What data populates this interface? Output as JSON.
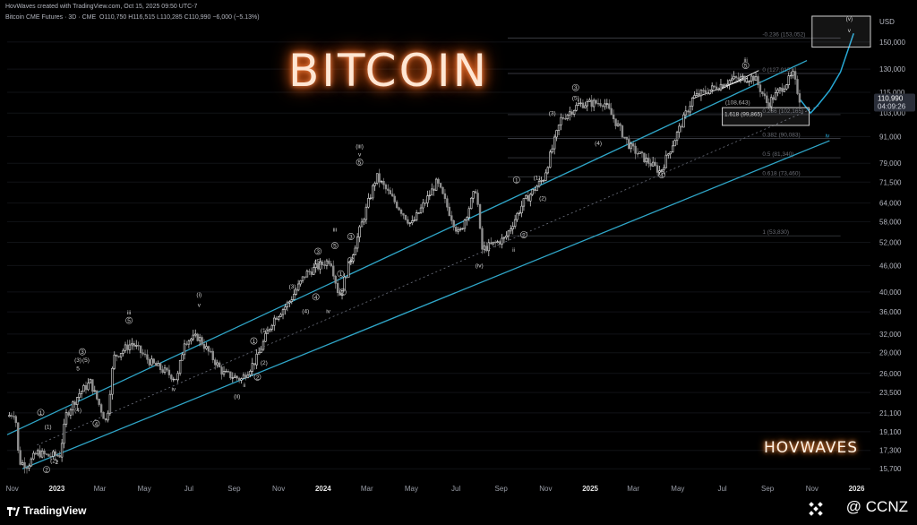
{
  "header": {
    "created_line": "HovWaves created with TradingView.com, Oct 15, 2025 09:50 UTC-7",
    "symbol_line": "Bitcoin CME Futures · 3D · CME",
    "ohlc": "O110,750 H116,515 L110,285 C110,990 −6,000 (−5.13%)",
    "currency": "USD"
  },
  "overlay": {
    "title": "BITCOIN",
    "brand": "HOVWAVES",
    "footer_logo": "TradingView",
    "watermark": "@ CCNZ"
  },
  "price_badges": {
    "last": "110,990",
    "timer": "04:09:26"
  },
  "chart_data": {
    "type": "line",
    "symbol": "Bitcoin CME Futures",
    "y_scale": "log",
    "ylim": [
      14500,
      172000
    ],
    "xlim": [
      "2022-10-25",
      "2026-01-20"
    ],
    "y_ticks": [
      15700,
      17300,
      19100,
      21100,
      23500,
      26000,
      29000,
      32000,
      36000,
      40000,
      46000,
      52000,
      58000,
      64000,
      71500,
      79000,
      91000,
      103000,
      115000,
      130000,
      150000
    ],
    "y_tick_labels": [
      "15,700",
      "17,300",
      "19,100",
      "21,100",
      "23,500",
      "26,000",
      "29,000",
      "32,000",
      "36,000",
      "40,000",
      "46,000",
      "52,000",
      "58,000",
      "64,000",
      "71,500",
      "79,000",
      "91,000",
      "103,000",
      "115,000",
      "130,000",
      "150,000"
    ],
    "x_ticks": [
      {
        "date": "2022-11-01",
        "label": "Nov"
      },
      {
        "date": "2023-01-01",
        "label": "2023"
      },
      {
        "date": "2023-03-01",
        "label": "Mar"
      },
      {
        "date": "2023-05-01",
        "label": "May"
      },
      {
        "date": "2023-07-01",
        "label": "Jul"
      },
      {
        "date": "2023-09-01",
        "label": "Sep"
      },
      {
        "date": "2023-11-01",
        "label": "Nov"
      },
      {
        "date": "2024-01-01",
        "label": "2024"
      },
      {
        "date": "2024-03-01",
        "label": "Mar"
      },
      {
        "date": "2024-05-01",
        "label": "May"
      },
      {
        "date": "2024-07-01",
        "label": "Jul"
      },
      {
        "date": "2024-09-01",
        "label": "Sep"
      },
      {
        "date": "2024-11-01",
        "label": "Nov"
      },
      {
        "date": "2025-01-01",
        "label": "2025"
      },
      {
        "date": "2025-03-01",
        "label": "Mar"
      },
      {
        "date": "2025-05-01",
        "label": "May"
      },
      {
        "date": "2025-07-01",
        "label": "Jul"
      },
      {
        "date": "2025-09-01",
        "label": "Sep"
      },
      {
        "date": "2025-11-01",
        "label": "Nov"
      },
      {
        "date": "2026-01-01",
        "label": "2026"
      }
    ],
    "series": [
      {
        "values": [
          [
            "2022-10-25",
            20700
          ],
          [
            "2022-11-05",
            21200
          ],
          [
            "2022-11-10",
            16300
          ],
          [
            "2022-11-22",
            16000
          ],
          [
            "2022-12-05",
            17100
          ],
          [
            "2022-12-20",
            16800
          ],
          [
            "2023-01-05",
            16900
          ],
          [
            "2023-01-14",
            20900
          ],
          [
            "2023-02-01",
            23400
          ],
          [
            "2023-02-16",
            24800
          ],
          [
            "2023-03-10",
            20000
          ],
          [
            "2023-03-20",
            28300
          ],
          [
            "2023-04-14",
            30500
          ],
          [
            "2023-05-10",
            27500
          ],
          [
            "2023-06-15",
            25200
          ],
          [
            "2023-06-25",
            30900
          ],
          [
            "2023-07-14",
            31500
          ],
          [
            "2023-08-17",
            26000
          ],
          [
            "2023-09-11",
            25200
          ],
          [
            "2023-10-01",
            27900
          ],
          [
            "2023-10-24",
            34500
          ],
          [
            "2023-11-15",
            37800
          ],
          [
            "2023-12-08",
            44000
          ],
          [
            "2024-01-11",
            47500
          ],
          [
            "2024-01-23",
            39000
          ],
          [
            "2024-02-15",
            52000
          ],
          [
            "2024-03-14",
            73700
          ],
          [
            "2024-05-01",
            57000
          ],
          [
            "2024-06-05",
            71500
          ],
          [
            "2024-07-05",
            54000
          ],
          [
            "2024-07-29",
            69500
          ],
          [
            "2024-08-05",
            50000
          ],
          [
            "2024-09-06",
            53000
          ],
          [
            "2024-10-01",
            64000
          ],
          [
            "2024-10-29",
            73000
          ],
          [
            "2024-11-22",
            99800
          ],
          [
            "2024-12-17",
            108000
          ],
          [
            "2025-01-20",
            109000
          ],
          [
            "2025-02-25",
            86000
          ],
          [
            "2025-04-07",
            75500
          ],
          [
            "2025-05-22",
            111900
          ],
          [
            "2025-07-14",
            123000
          ],
          [
            "2025-08-14",
            124500
          ],
          [
            "2025-09-01",
            108000
          ],
          [
            "2025-10-06",
            126000
          ],
          [
            "2025-10-15",
            110990
          ]
        ]
      }
    ],
    "fib_levels": [
      {
        "label": "-0.236 (153,052)",
        "value": 153052
      },
      {
        "label": "0 (127,015)",
        "value": 127015
      },
      {
        "label": "0.236 (102,165)",
        "value": 102165
      },
      {
        "label": "0.382 (90,083)",
        "value": 90083
      },
      {
        "label": "0.5 (81,340)",
        "value": 81340
      },
      {
        "label": "0.618 (73,460)",
        "value": 73460
      },
      {
        "label": "1 (53,830)",
        "value": 53830
      }
    ],
    "inner_level": "1.618 (99,865)",
    "small_level": "(108,643)",
    "wave_labels": [
      {
        "t": "(v)",
        "d": "2025-12-22",
        "y": 168000,
        "w": 1
      },
      {
        "t": "v",
        "d": "2025-12-22",
        "y": 158000,
        "w": 1
      },
      {
        "t": "iii",
        "d": "2025-08-02",
        "y": 135000,
        "w": 1
      },
      {
        "t": "5",
        "d": "2025-08-02",
        "y": 131000,
        "w": 1,
        "c": 1
      },
      {
        "t": "3",
        "d": "2024-12-12",
        "y": 116500,
        "w": 1,
        "c": 1
      },
      {
        "t": "(5)",
        "d": "2024-12-12",
        "y": 110500,
        "w": 1
      },
      {
        "t": "(3)",
        "d": "2024-11-10",
        "y": 102000,
        "w": 1
      },
      {
        "t": "(4)",
        "d": "2025-01-12",
        "y": 87000,
        "w": 1
      },
      {
        "t": "4",
        "d": "2025-04-09",
        "y": 73500,
        "w": 1,
        "c": 1
      },
      {
        "t": "iv",
        "d": "2025-11-22",
        "y": 90500,
        "w": 1
      },
      {
        "t": "(iii)",
        "d": "2024-02-20",
        "y": 85500,
        "w": 1
      },
      {
        "t": "v",
        "d": "2024-02-20",
        "y": 82000,
        "w": 1
      },
      {
        "t": "5",
        "d": "2024-02-20",
        "y": 78500,
        "w": 1,
        "c": 1
      },
      {
        "t": "1",
        "d": "2024-09-22",
        "y": 71500,
        "w": 1,
        "c": 1
      },
      {
        "t": "(1)",
        "d": "2024-10-20",
        "y": 72500,
        "w": 1
      },
      {
        "t": "(2)",
        "d": "2024-10-28",
        "y": 65000,
        "w": 1
      },
      {
        "t": "2",
        "d": "2024-10-02",
        "y": 53500,
        "w": 1,
        "c": 1
      },
      {
        "t": "ii",
        "d": "2024-09-18",
        "y": 49500,
        "w": 1
      },
      {
        "t": "(iv)",
        "d": "2024-08-02",
        "y": 45500,
        "w": 1
      },
      {
        "t": "iii",
        "d": "2024-01-17",
        "y": 55000,
        "w": 1
      },
      {
        "t": "5",
        "d": "2024-01-17",
        "y": 50500,
        "w": 1,
        "c": 1
      },
      {
        "t": "3",
        "d": "2023-12-25",
        "y": 49000,
        "w": 1,
        "c": 1
      },
      {
        "t": "(5)",
        "d": "2023-12-25",
        "y": 46500,
        "w": 1
      },
      {
        "t": "3",
        "d": "2024-02-08",
        "y": 53000,
        "w": 1,
        "c": 1
      },
      {
        "t": "4",
        "d": "2024-02-08",
        "y": 46700,
        "w": 1,
        "c": 1
      },
      {
        "t": "(3)",
        "d": "2023-11-20",
        "y": 40700,
        "w": 1
      },
      {
        "t": "4",
        "d": "2023-12-22",
        "y": 38500,
        "w": 1,
        "c": 1
      },
      {
        "t": "(4)",
        "d": "2023-12-08",
        "y": 35800,
        "w": 1
      },
      {
        "t": "1",
        "d": "2024-01-25",
        "y": 43500,
        "w": 1,
        "c": 1
      },
      {
        "t": "2",
        "d": "2024-01-28",
        "y": 39500,
        "w": 1,
        "c": 1
      },
      {
        "t": "iv",
        "d": "2024-01-08",
        "y": 35800,
        "w": 1
      },
      {
        "t": "(i)",
        "d": "2023-07-15",
        "y": 39000,
        "w": 1
      },
      {
        "t": "v",
        "d": "2023-07-15",
        "y": 37000,
        "w": 1
      },
      {
        "t": "iii",
        "d": "2023-04-10",
        "y": 35500,
        "w": 1
      },
      {
        "t": "5",
        "d": "2023-04-10",
        "y": 34000,
        "w": 1,
        "c": 1
      },
      {
        "t": "1",
        "d": "2023-09-28",
        "y": 30500,
        "w": 1,
        "c": 1
      },
      {
        "t": "(1)",
        "d": "2023-10-12",
        "y": 32300,
        "w": 1
      },
      {
        "t": "(2)",
        "d": "2023-10-12",
        "y": 27200,
        "w": 1
      },
      {
        "t": "2",
        "d": "2023-10-03",
        "y": 25200,
        "w": 1,
        "c": 1
      },
      {
        "t": "ii",
        "d": "2023-09-15",
        "y": 24200,
        "w": 1
      },
      {
        "t": "(ii)",
        "d": "2023-09-05",
        "y": 22800,
        "w": 1
      },
      {
        "t": "iv",
        "d": "2023-06-10",
        "y": 23700,
        "w": 1
      },
      {
        "t": "3",
        "d": "2023-02-05",
        "y": 28800,
        "w": 1,
        "c": 1
      },
      {
        "t": "(3)",
        "d": "2023-01-30",
        "y": 27600,
        "w": 1
      },
      {
        "t": "(5)",
        "d": "2023-02-10",
        "y": 27600,
        "w": 1
      },
      {
        "t": "5",
        "d": "2023-01-30",
        "y": 26400,
        "w": 1
      },
      {
        "t": "(4)",
        "d": "2023-01-30",
        "y": 21200,
        "w": 1
      },
      {
        "t": "1",
        "d": "2022-12-10",
        "y": 20900,
        "w": 1,
        "c": 1
      },
      {
        "t": "(1)",
        "d": "2022-12-20",
        "y": 19400,
        "w": 1
      },
      {
        "t": "(2)",
        "d": "2022-12-28",
        "y": 16200,
        "w": 1
      },
      {
        "t": "2",
        "d": "2022-12-18",
        "y": 15450,
        "w": 1,
        "c": 1
      },
      {
        "t": "2",
        "d": "2023-01-01",
        "y": 16100,
        "w": 1
      },
      {
        "t": "4",
        "d": "2023-02-24",
        "y": 19700,
        "w": 1,
        "c": 1
      }
    ],
    "colors": {
      "candle_up": "#e6e6e6",
      "candle_down": "#8f8f8f",
      "channel": "#2fa6c8",
      "projection": "#27a9d6"
    }
  }
}
